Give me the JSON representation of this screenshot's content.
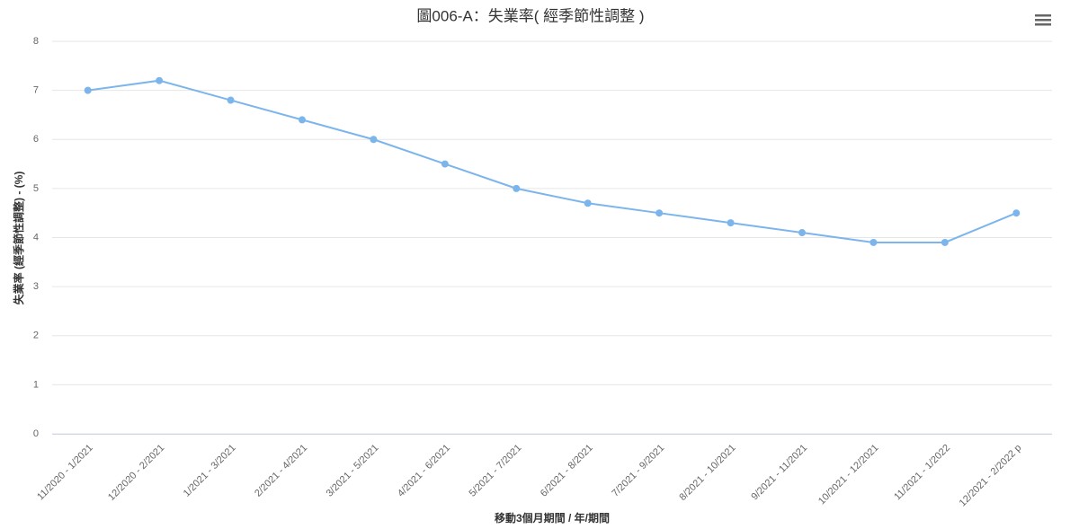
{
  "chart_data": {
    "type": "line",
    "title": "圖006-A：失業率( 經季節性調整 )",
    "x_label": "移動3個月期間 / 年/期間",
    "y_label": "失業率 (經季節性調整) - (%)",
    "categories": [
      "11/2020 - 1/2021",
      "12/2020 - 2/2021",
      "1/2021 - 3/2021",
      "2/2021 - 4/2021",
      "3/2021 - 5/2021",
      "4/2021 - 6/2021",
      "5/2021 - 7/2021",
      "6/2021 - 8/2021",
      "7/2021 - 9/2021",
      "8/2021 - 10/2021",
      "9/2021 - 11/2021",
      "10/2021 - 12/2021",
      "11/2021 - 1/2022",
      "12/2021 - 2/2022 p"
    ],
    "values": [
      7.0,
      7.2,
      6.8,
      6.4,
      6.0,
      5.5,
      5.0,
      4.7,
      4.5,
      4.3,
      4.1,
      3.9,
      3.9,
      4.5
    ],
    "color": "#7cb5ec",
    "ylim": [
      0,
      8
    ],
    "yticks": [
      0,
      1,
      2,
      3,
      4,
      5,
      6,
      7,
      8
    ],
    "grid": true
  }
}
